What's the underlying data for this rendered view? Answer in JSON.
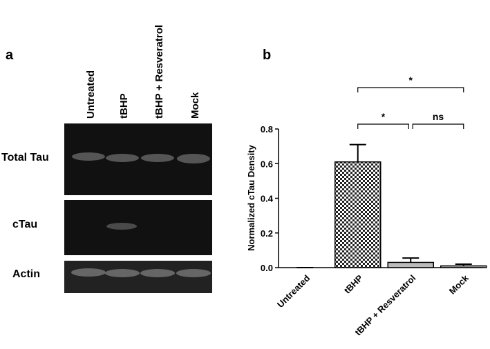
{
  "panel_a": {
    "label": "a",
    "lanes": [
      "Untreated",
      "tBHP",
      "tBHP + Resveratrol",
      "Mock"
    ],
    "rows": [
      "Total Tau",
      "cTau",
      "Actin"
    ]
  },
  "chart_data": {
    "type": "bar",
    "panel_label": "b",
    "ylabel": "Normalized cTau Density",
    "categories": [
      "Untreated",
      "tBHP",
      "tBHP + Resveratrol",
      "Mock"
    ],
    "values": [
      0,
      0.61,
      0.03,
      0.01
    ],
    "errors": [
      0,
      0.1,
      0.025,
      0.01
    ],
    "ylim": [
      0,
      0.8
    ],
    "yticks": [
      {
        "value": 0,
        "label": "0.0"
      },
      0.2,
      0.4,
      0.6,
      0.8
    ],
    "annotations": [
      {
        "from": 1,
        "to": 3,
        "label": "*"
      },
      {
        "from": 1,
        "to": 2,
        "label": "*"
      },
      {
        "from": 2,
        "to": 3,
        "label": "ns"
      }
    ]
  }
}
